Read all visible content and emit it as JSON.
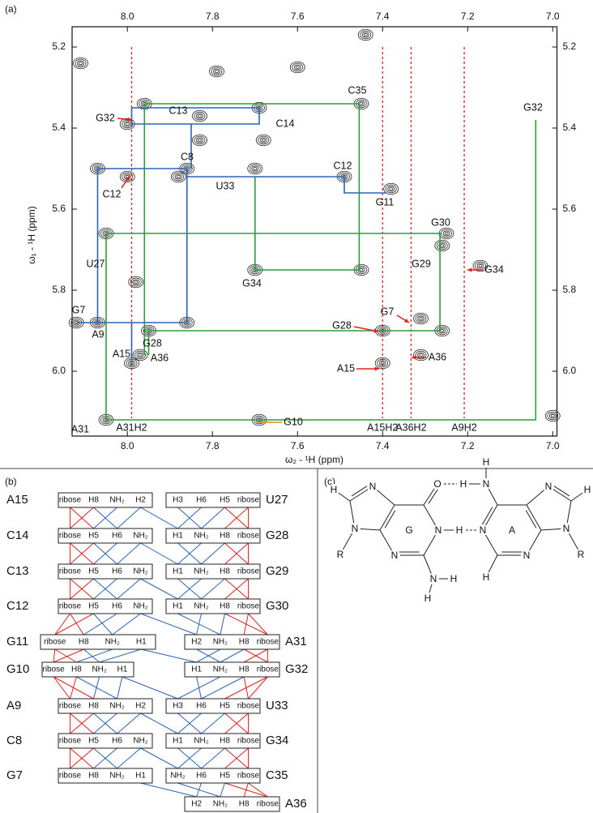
{
  "chart_data": {
    "type": "nmr-walk",
    "panel_label": "(a)",
    "x_label": "ω₂ - ¹H (ppm)",
    "y_label": "ω₁ - ¹H (ppm)",
    "xlim": [
      8.13,
      6.99
    ],
    "ylim": [
      5.15,
      6.16
    ],
    "xticks": [
      {
        "value": 8,
        "label": "8.0"
      },
      7.8,
      7.6,
      7.4,
      7.2,
      {
        "value": 7,
        "label": "7.0"
      }
    ],
    "yticks": [
      5.2,
      5.4,
      5.6,
      5.8,
      {
        "value": 6,
        "label": "6.0"
      }
    ],
    "peak_color": "#222222",
    "peaks": {
      "x": [
        8.11,
        8.07,
        8.12,
        8.07,
        8.05,
        8.05,
        8.0,
        8.0,
        7.99,
        7.96,
        7.97,
        7.95,
        7.86,
        7.86,
        7.83,
        7.83,
        7.79,
        7.69,
        7.68,
        7.7,
        7.7,
        7.69,
        7.44,
        7.45,
        7.45,
        7.49,
        7.4,
        7.4,
        7.31,
        7.31,
        7.25,
        7.26,
        7.26,
        7.17,
        7.98,
        7.38,
        7.0,
        7.88,
        7.6
      ],
      "y": [
        5.24,
        5.5,
        5.88,
        5.88,
        5.66,
        6.12,
        5.39,
        5.52,
        5.98,
        5.34,
        5.96,
        5.9,
        5.5,
        5.88,
        5.43,
        5.37,
        5.26,
        5.35,
        5.43,
        5.5,
        5.75,
        6.12,
        5.17,
        5.34,
        5.75,
        5.52,
        5.9,
        5.98,
        5.87,
        5.96,
        5.66,
        5.69,
        5.9,
        5.74,
        5.78,
        5.55,
        6.11,
        5.52,
        5.25
      ]
    },
    "walks": [
      {
        "color": "#2b63b5",
        "x": [
          8.12,
          7.86,
          7.86,
          8.07,
          8.07,
          null,
          7.86,
          7.49,
          7.49,
          7.39,
          null,
          7.85,
          7.85,
          7.99,
          7.99,
          7.69,
          7.69,
          7.85,
          null,
          7.99,
          7.99
        ],
        "y": [
          5.88,
          5.88,
          5.5,
          5.5,
          5.88,
          null,
          5.52,
          5.52,
          5.56,
          5.56,
          null,
          5.5,
          5.39,
          5.39,
          5.35,
          5.35,
          5.39,
          5.39,
          null,
          5.88,
          5.98
        ]
      },
      {
        "color": "#2e9a3c",
        "x": [
          7.96,
          7.455,
          7.455,
          7.7,
          7.7,
          null,
          7.96,
          7.96,
          null,
          8.05,
          7.265,
          7.265,
          7.95,
          7.95,
          null,
          8.05,
          8.05,
          7.04,
          7.04
        ],
        "y": [
          5.34,
          5.34,
          5.75,
          5.75,
          5.52,
          null,
          5.34,
          5.96,
          null,
          5.66,
          5.66,
          5.9,
          5.9,
          5.96,
          null,
          5.66,
          6.12,
          6.12,
          5.38
        ]
      }
    ],
    "guides": {
      "color": "#e0201c",
      "x": [
        7.99,
        7.4,
        7.333,
        7.208
      ],
      "labels": [
        "A31H2",
        "A15H2",
        "A36H2",
        "A9H2"
      ]
    },
    "annotations": [
      {
        "text": "C13",
        "color": "#2b63b5"
      },
      {
        "text": "C14",
        "color": "#2b63b5"
      },
      {
        "text": "C8",
        "color": "#2b63b5"
      },
      {
        "text": "C12",
        "color": "#2b63b5"
      },
      {
        "text": "G11",
        "color": "#2b63b5"
      },
      {
        "text": "G7",
        "color": "#2b63b5"
      },
      {
        "text": "A9",
        "color": "#2b63b5"
      },
      {
        "text": "A15",
        "color": "#2b63b5"
      },
      {
        "text": "C35",
        "color": "#2e9a3c"
      },
      {
        "text": "G32",
        "color": "#2e9a3c"
      },
      {
        "text": "U33",
        "color": "#2e9a3c"
      },
      {
        "text": "G30",
        "color": "#2e9a3c"
      },
      {
        "text": "G29",
        "color": "#2e9a3c"
      },
      {
        "text": "U27",
        "color": "#2e9a3c"
      },
      {
        "text": "G34",
        "color": "#2e9a3c"
      },
      {
        "text": "G28",
        "color": "#2e9a3c"
      },
      {
        "text": "A36",
        "color": "#2e9a3c"
      },
      {
        "text": "A31",
        "color": "#2e9a3c"
      },
      {
        "text": "G32",
        "color": "#e0201c"
      },
      {
        "text": "C12",
        "color": "#e0201c"
      },
      {
        "text": "G28",
        "color": "#e0201c"
      },
      {
        "text": "G7",
        "color": "#e0201c"
      },
      {
        "text": "A15",
        "color": "#e0201c"
      },
      {
        "text": "A36",
        "color": "#e0201c"
      },
      {
        "text": "G34",
        "color": "#e0201c"
      },
      {
        "text": "G10",
        "color": "#e8900c"
      }
    ]
  },
  "panel_b": {
    "label": "(b)",
    "rows": [
      {
        "left_label": "A15",
        "left_cells": [
          "ribose",
          "H8",
          "NH₂",
          "H2"
        ],
        "right_cells": [
          "H3",
          "H6",
          "H5",
          "ribose"
        ],
        "right_label": "U27"
      },
      {
        "left_label": "C14",
        "left_cells": [
          "ribose",
          "H5",
          "H6",
          "NH₂"
        ],
        "right_cells": [
          "H1",
          "NH₂",
          "H8",
          "ribose"
        ],
        "right_label": "G28"
      },
      {
        "left_label": "C13",
        "left_cells": [
          "ribose",
          "H5",
          "H6",
          "NH₂"
        ],
        "right_cells": [
          "H1",
          "NH₂",
          "H8",
          "ribose"
        ],
        "right_label": "G29"
      },
      {
        "left_label": "C12",
        "left_cells": [
          "ribose",
          "H5",
          "H6",
          "NH₂"
        ],
        "right_cells": [
          "H1",
          "NH₂",
          "H8",
          "ribose"
        ],
        "right_label": "G30"
      },
      {
        "left_label": "G11",
        "left_cells": [
          "ribose",
          "H8",
          "NH₂",
          "H1"
        ],
        "right_cells": [
          "H2",
          "NH₂",
          "H8",
          "ribose"
        ],
        "right_label": "A31"
      },
      {
        "left_label": "G10",
        "left_cells": [
          "ribose",
          "H8",
          "NH₂",
          "H1"
        ],
        "right_cells": [
          "H1",
          "NH₂",
          "H8",
          "ribose"
        ],
        "right_label": "G32"
      },
      {
        "left_label": "A9",
        "left_cells": [
          "ribose",
          "H8",
          "NH₂",
          "H2"
        ],
        "right_cells": [
          "H3",
          "H6",
          "H5",
          "ribose"
        ],
        "right_label": "U33"
      },
      {
        "left_label": "C8",
        "left_cells": [
          "ribose",
          "H5",
          "H6",
          "NH₂"
        ],
        "right_cells": [
          "H1",
          "NH₂",
          "H8",
          "ribose"
        ],
        "right_label": "G34"
      },
      {
        "left_label": "G7",
        "left_cells": [
          "ribose",
          "H8",
          "NH₂",
          "H1"
        ],
        "right_cells": [
          "NH₂",
          "H6",
          "H5",
          "ribose"
        ],
        "right_label": "C35"
      },
      {
        "right_cells": [
          "H2",
          "NH₂",
          "H8",
          "ribose"
        ],
        "right_label": "A36"
      }
    ]
  },
  "panel_c": {
    "label": "(c)",
    "atoms": [
      "N",
      "H",
      "N",
      "R",
      "N",
      "O",
      "H",
      "N",
      "H",
      "N",
      "H",
      "N",
      "N",
      "H",
      "H",
      "N",
      "H",
      "N",
      "H",
      "N",
      "R",
      "G",
      "A"
    ]
  }
}
